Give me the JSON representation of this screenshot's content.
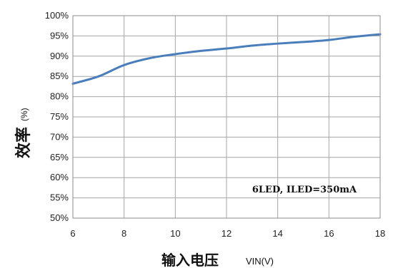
{
  "chart_data": {
    "type": "line",
    "ylabel": "效率",
    "ylabel_unit": "(%)",
    "xlabel": "输入电压",
    "xlabel_unit": "VIN(V)",
    "annotation": "6LED, ILED=350mA",
    "xlim": [
      6,
      18
    ],
    "ylim": [
      50,
      100
    ],
    "x_ticks": [
      6,
      8,
      10,
      12,
      14,
      16,
      18
    ],
    "x_tick_labels": [
      "6",
      "8",
      "10",
      "12",
      "14",
      "16",
      "18"
    ],
    "y_ticks": [
      50,
      55,
      60,
      65,
      70,
      75,
      80,
      85,
      90,
      95,
      100
    ],
    "y_tick_labels": [
      "50%",
      "55%",
      "60%",
      "65%",
      "70%",
      "75%",
      "80%",
      "85%",
      "90%",
      "95%",
      "100%"
    ],
    "grid": true,
    "series": [
      {
        "color": "#4a7ebb",
        "x": [
          6,
          7,
          8,
          9,
          10,
          11,
          12,
          13,
          14,
          15,
          16,
          17,
          18
        ],
        "y": [
          83.2,
          85.0,
          87.8,
          89.5,
          90.5,
          91.3,
          91.9,
          92.6,
          93.1,
          93.5,
          94.0,
          94.8,
          95.4
        ]
      }
    ]
  }
}
